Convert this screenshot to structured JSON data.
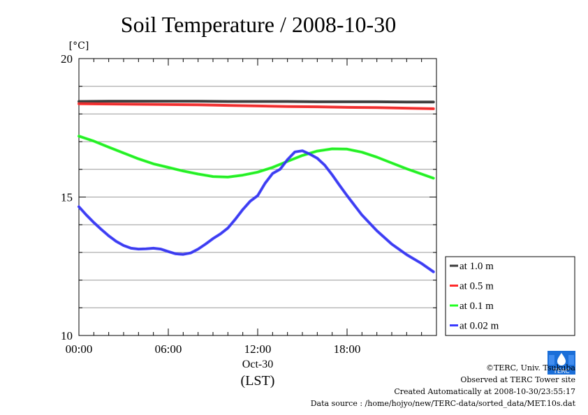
{
  "chart_data": {
    "type": "line",
    "title": "Soil Temperature / 2008-10-30",
    "ylabel": "[°C]",
    "xlabel": "(LST)",
    "x_date_label": "Oct-30",
    "ylim": [
      10,
      20
    ],
    "y_ticks": [
      10,
      15,
      20
    ],
    "x_ticks": [
      "00:00",
      "06:00",
      "12:00",
      "18:00"
    ],
    "xlim_hours": [
      0,
      24
    ],
    "grid": true,
    "legend_position": "right, lower",
    "series": [
      {
        "name": "at 1.0 m",
        "color": "#3a3a3a",
        "x": [
          0,
          2,
          4,
          6,
          8,
          10,
          12,
          14,
          16,
          18,
          20,
          22,
          23.8
        ],
        "y": [
          18.45,
          18.46,
          18.46,
          18.46,
          18.46,
          18.45,
          18.45,
          18.45,
          18.44,
          18.44,
          18.44,
          18.43,
          18.43
        ]
      },
      {
        "name": "at 0.5 m",
        "color": "#ff2a2a",
        "x": [
          0,
          2,
          4,
          6,
          8,
          10,
          12,
          14,
          16,
          18,
          20,
          22,
          23.8
        ],
        "y": [
          18.37,
          18.36,
          18.35,
          18.34,
          18.33,
          18.31,
          18.29,
          18.27,
          18.26,
          18.24,
          18.23,
          18.21,
          18.19
        ]
      },
      {
        "name": "at 0.1 m",
        "color": "#22ff22",
        "x": [
          0,
          1,
          2,
          3,
          4,
          5,
          6,
          7,
          8,
          9,
          10,
          11,
          12,
          13,
          14,
          15,
          16,
          17,
          18,
          19,
          20,
          21,
          22,
          23,
          23.8
        ],
        "y": [
          17.2,
          17.02,
          16.8,
          16.59,
          16.38,
          16.2,
          16.07,
          15.94,
          15.83,
          15.74,
          15.72,
          15.79,
          15.9,
          16.07,
          16.29,
          16.5,
          16.66,
          16.74,
          16.73,
          16.62,
          16.44,
          16.23,
          16.02,
          15.83,
          15.68
        ]
      },
      {
        "name": "at 0.02 m",
        "color": "#3a3aff",
        "x": [
          0,
          0.5,
          1,
          1.5,
          2,
          2.5,
          3,
          3.5,
          4,
          4.5,
          5,
          5.5,
          6,
          6.5,
          7,
          7.5,
          8,
          8.5,
          9,
          9.5,
          10,
          10.5,
          11,
          11.5,
          12,
          12.5,
          13,
          13.5,
          14,
          14.5,
          15,
          15.5,
          16,
          16.5,
          17,
          17.5,
          18,
          19,
          20,
          21,
          22,
          23,
          23.8
        ],
        "y": [
          14.65,
          14.35,
          14.08,
          13.83,
          13.6,
          13.4,
          13.25,
          13.15,
          13.12,
          13.13,
          13.15,
          13.12,
          13.03,
          12.95,
          12.93,
          12.98,
          13.12,
          13.3,
          13.5,
          13.67,
          13.88,
          14.2,
          14.55,
          14.85,
          15.05,
          15.5,
          15.85,
          16.0,
          16.35,
          16.63,
          16.67,
          16.55,
          16.4,
          16.15,
          15.8,
          15.42,
          15.05,
          14.35,
          13.78,
          13.3,
          12.92,
          12.6,
          12.3
        ]
      }
    ]
  },
  "footer": {
    "copyright": "©TERC, Univ. Tsukuba",
    "observed": "Observed at TERC Tower site",
    "created": "Created Automatically at 2008-10-30/23:55:17",
    "source": "Data source : /home/hojyo/new/TERC-data/sorted_data/MET.10s.dat"
  },
  "logo": {
    "text": "TERC",
    "color": "#1a6ed8"
  }
}
